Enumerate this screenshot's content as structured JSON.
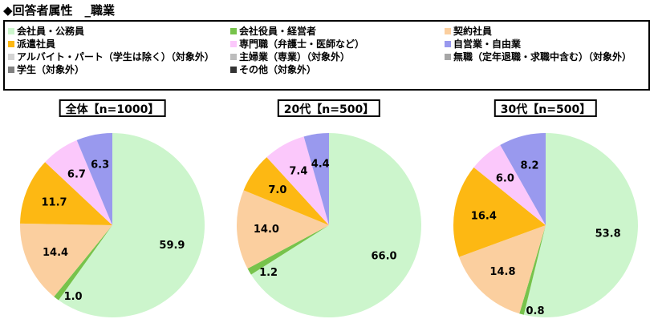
{
  "title": "◆回答者属性　_職業",
  "legend": [
    {
      "label": "会社員・公務員",
      "color": "#ccf5cc"
    },
    {
      "label": "会社役員・経営者",
      "color": "#77c34b"
    },
    {
      "label": "契約社員",
      "color": "#fbcf9f"
    },
    {
      "label": "派遣社員",
      "color": "#fdb813"
    },
    {
      "label": "専門職（弁護士・医師など）",
      "color": "#fbc8fb"
    },
    {
      "label": "自営業・自由業",
      "color": "#9999ee"
    },
    {
      "label": "アルバイト・パート（学生は除く）（対象外）",
      "color": "#d4d4d4"
    },
    {
      "label": "主婦業（専業）（対象外）",
      "color": "#bdbdbd"
    },
    {
      "label": "無職（定年退職・求職中含む）（対象外）",
      "color": "#a6a6a6"
    },
    {
      "label": "学生（対象外）",
      "color": "#808080"
    },
    {
      "label": "その他（対象外）",
      "color": "#333333"
    }
  ],
  "chart_data": [
    {
      "type": "pie",
      "title": "全体【n=1000】",
      "categories": [
        "会社員・公務員",
        "会社役員・経営者",
        "契約社員",
        "派遣社員",
        "専門職（弁護士・医師など）",
        "自営業・自由業"
      ],
      "values": [
        59.9,
        1.0,
        14.4,
        11.7,
        6.7,
        6.3
      ],
      "labels": [
        "59.9",
        "1.0",
        "14.4",
        "11.7",
        "6.7",
        "6.3"
      ]
    },
    {
      "type": "pie",
      "title": "20代【n=500】",
      "categories": [
        "会社員・公務員",
        "会社役員・経営者",
        "契約社員",
        "派遣社員",
        "専門職（弁護士・医師など）",
        "自営業・自由業"
      ],
      "values": [
        66.0,
        1.2,
        14.0,
        7.0,
        7.4,
        4.4
      ],
      "labels": [
        "66.0",
        "1.2",
        "14.0",
        "7.0",
        "7.4",
        "4.4"
      ]
    },
    {
      "type": "pie",
      "title": "30代【n=500】",
      "categories": [
        "会社員・公務員",
        "会社役員・経営者",
        "契約社員",
        "派遣社員",
        "専門職（弁護士・医師など）",
        "自営業・自由業"
      ],
      "values": [
        53.8,
        0.8,
        14.8,
        16.4,
        6.0,
        8.2
      ],
      "labels": [
        "53.8",
        "0.8",
        "14.8",
        "16.4",
        "6.0",
        "8.2"
      ]
    }
  ]
}
